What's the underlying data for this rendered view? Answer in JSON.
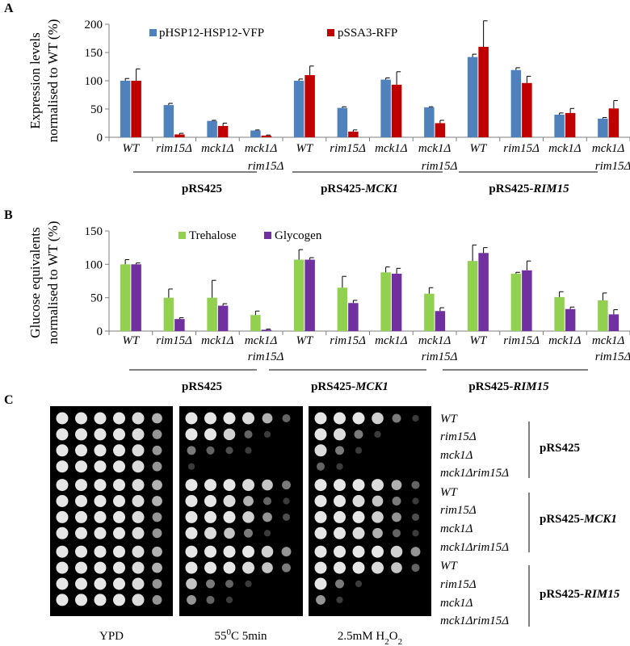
{
  "chart_data": [
    {
      "panel": "A",
      "type": "bar",
      "ylabel": [
        "Expression levels",
        "normalised to  WT (%)"
      ],
      "ylim": [
        0,
        200
      ],
      "yticks": [
        0,
        50,
        100,
        150,
        200
      ],
      "categories": [
        "WT",
        "rim15Δ",
        "mck1Δ",
        "mck1Δ|rim15Δ",
        "WT",
        "rim15Δ",
        "mck1Δ",
        "mck1Δ|rim15Δ",
        "WT",
        "rim15Δ",
        "mck1Δ",
        "mck1Δ|rim15Δ"
      ],
      "groups": [
        "pRS425",
        "pRS425-|MCK1",
        "pRS425-|RIM15"
      ],
      "legend_position": "top",
      "series": [
        {
          "name": "pHSP12-HSP12-VFP",
          "color": "#4f81bd",
          "values": [
            100,
            57,
            29,
            12,
            100,
            52,
            102,
            53,
            142,
            119,
            40,
            33
          ],
          "errors": [
            4,
            3,
            1,
            1,
            3,
            2,
            3,
            1,
            5,
            4,
            3,
            2
          ]
        },
        {
          "name": "pSSA3-RFP",
          "color": "#c00000",
          "values": [
            100,
            5,
            20,
            3,
            110,
            10,
            93,
            25,
            160,
            96,
            43,
            51
          ],
          "errors": [
            21,
            2,
            5,
            1,
            16,
            3,
            23,
            5,
            46,
            12,
            8,
            14
          ]
        }
      ]
    },
    {
      "panel": "B",
      "type": "bar",
      "ylabel": [
        "Glucose equivalents",
        "normalised to  WT (%)"
      ],
      "ylim": [
        0,
        150
      ],
      "yticks": [
        0,
        50,
        100,
        150
      ],
      "categories": [
        "WT",
        "rim15Δ",
        "mck1Δ",
        "mck1Δ|rim15Δ",
        "WT",
        "rim15Δ",
        "mck1Δ",
        "mck1Δ|rim15Δ",
        "WT",
        "rim15Δ",
        "mck1Δ",
        "mck1Δ|rim15Δ"
      ],
      "groups": [
        "pRS425",
        "pRS425-|MCK1",
        "pRS425-|RIM15"
      ],
      "legend_position": "top",
      "series": [
        {
          "name": "Trehalose",
          "color": "#92d050",
          "values": [
            100,
            50,
            50,
            24,
            107,
            65,
            88,
            56,
            105,
            86,
            51,
            46
          ],
          "errors": [
            7,
            13,
            26,
            6,
            15,
            17,
            8,
            9,
            24,
            2,
            8,
            11
          ]
        },
        {
          "name": "Glycogen",
          "color": "#7030a0",
          "values": [
            100,
            18,
            38,
            2,
            107,
            42,
            86,
            30,
            117,
            91,
            33,
            25
          ],
          "errors": [
            2,
            2,
            3,
            1,
            3,
            4,
            8,
            5,
            8,
            14,
            3,
            7
          ]
        }
      ]
    }
  ],
  "panel_c": {
    "letter": "C",
    "conditions": [
      "YPD",
      "55|0|C  5min",
      "2.5mM H|2|O|2"
    ],
    "strains": [
      "WT",
      " rim15Δ",
      "mck1Δ",
      "mck1Δrim15Δ",
      "WT",
      " rim15Δ",
      "mck1Δ",
      "mck1Δrim15Δ",
      "WT",
      " rim15Δ",
      "mck1Δ",
      "mck1Δrim15Δ"
    ],
    "plasmids": [
      "pRS425",
      "pRS425-|MCK1",
      "pRS425-|RIM15"
    ],
    "spot_growth_levels": [
      [
        [
          1,
          1,
          1,
          1,
          0.9,
          0.6
        ],
        [
          1,
          1,
          1,
          1,
          0.9,
          0.5
        ],
        [
          1,
          1,
          1,
          1,
          0.9,
          0.5
        ],
        [
          1,
          1,
          1,
          1,
          0.9,
          0.5
        ],
        [
          1,
          1,
          1,
          1,
          0.9,
          0.6
        ],
        [
          1,
          1,
          1,
          1,
          0.9,
          0.6
        ],
        [
          1,
          1,
          1,
          1,
          0.9,
          0.5
        ],
        [
          1,
          1,
          1,
          1,
          0.9,
          0.5
        ],
        [
          1,
          1,
          1,
          1,
          0.9,
          0.6
        ],
        [
          1,
          1,
          1,
          1,
          0.9,
          0.6
        ],
        [
          1,
          1,
          1,
          1,
          0.9,
          0.5
        ],
        [
          1,
          1,
          1,
          1,
          0.9,
          0.5
        ]
      ],
      [
        [
          1,
          1,
          1,
          0.9,
          0.6,
          0.3
        ],
        [
          1,
          1,
          0.8,
          0.3,
          0.1,
          0
        ],
        [
          0.4,
          0.3,
          0.2,
          0.1,
          0,
          0
        ],
        [
          0.1,
          0,
          0,
          0,
          0,
          0
        ],
        [
          1,
          1,
          1,
          0.9,
          0.7,
          0.4
        ],
        [
          1,
          1,
          0.9,
          0.6,
          0.3,
          0.1
        ],
        [
          1,
          1,
          1,
          0.8,
          0.5,
          0.2
        ],
        [
          1,
          0.9,
          0.7,
          0.4,
          0.1,
          0
        ],
        [
          1,
          1,
          1,
          1,
          0.8,
          0.5
        ],
        [
          1,
          1,
          1,
          0.9,
          0.7,
          0.4
        ],
        [
          0.7,
          0.4,
          0.3,
          0.1,
          0,
          0
        ],
        [
          0.5,
          0.3,
          0.1,
          0,
          0,
          0
        ]
      ],
      [
        [
          1,
          1,
          1,
          0.8,
          0.4,
          0.1
        ],
        [
          1,
          0.9,
          0.4,
          0.1,
          0,
          0
        ],
        [
          0.9,
          0.4,
          0.1,
          0,
          0,
          0
        ],
        [
          0.3,
          0.1,
          0,
          0,
          0,
          0
        ],
        [
          1,
          1,
          1,
          0.9,
          0.6,
          0.3
        ],
        [
          1,
          1,
          0.9,
          0.7,
          0.4,
          0.1
        ],
        [
          1,
          1,
          1,
          0.8,
          0.5,
          0.2
        ],
        [
          1,
          1,
          0.9,
          0.6,
          0.3,
          0.1
        ],
        [
          1,
          1,
          1,
          1,
          0.8,
          0.5
        ],
        [
          1,
          1,
          1,
          0.9,
          0.7,
          0.3
        ],
        [
          1,
          0.4,
          0.1,
          0,
          0,
          0
        ],
        [
          0.5,
          0.1,
          0,
          0,
          0,
          0
        ]
      ]
    ]
  }
}
